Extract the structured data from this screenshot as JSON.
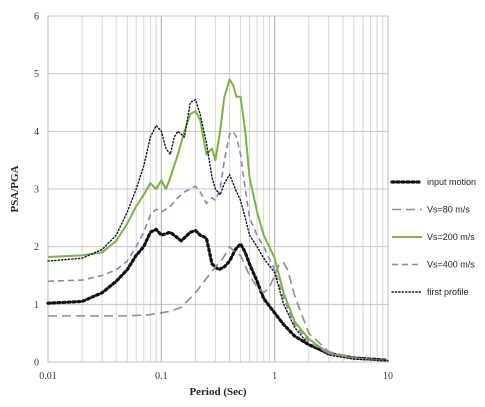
{
  "chart_data": {
    "type": "line",
    "title": "",
    "xlabel": "Period (Sec)",
    "ylabel": "PSA/PGA",
    "x_scale": "log",
    "xlim": [
      0.01,
      10
    ],
    "ylim": [
      0,
      6
    ],
    "x_ticks": [
      {
        "value": 0.01,
        "label": "0.01"
      },
      {
        "value": 0.1,
        "label": "0.1"
      },
      {
        "value": 1,
        "label": "1"
      },
      {
        "value": 10,
        "label": "10"
      }
    ],
    "y_ticks": [
      {
        "value": 0,
        "label": "0"
      },
      {
        "value": 1,
        "label": "1"
      },
      {
        "value": 2,
        "label": "2"
      },
      {
        "value": 3,
        "label": "3"
      },
      {
        "value": 4,
        "label": "4"
      },
      {
        "value": 5,
        "label": "5"
      },
      {
        "value": 6,
        "label": "6"
      }
    ],
    "grid": true,
    "legend_position": "right",
    "series": [
      {
        "name": "input motion",
        "color": "#111111",
        "style": "dotted-bold",
        "points": [
          [
            0.01,
            1.02
          ],
          [
            0.02,
            1.05
          ],
          [
            0.03,
            1.2
          ],
          [
            0.04,
            1.4
          ],
          [
            0.05,
            1.6
          ],
          [
            0.06,
            1.85
          ],
          [
            0.07,
            2.0
          ],
          [
            0.08,
            2.25
          ],
          [
            0.09,
            2.3
          ],
          [
            0.1,
            2.2
          ],
          [
            0.12,
            2.25
          ],
          [
            0.15,
            2.1
          ],
          [
            0.18,
            2.25
          ],
          [
            0.2,
            2.28
          ],
          [
            0.22,
            2.2
          ],
          [
            0.25,
            2.15
          ],
          [
            0.28,
            1.7
          ],
          [
            0.32,
            1.6
          ],
          [
            0.36,
            1.65
          ],
          [
            0.4,
            1.75
          ],
          [
            0.45,
            1.95
          ],
          [
            0.5,
            2.05
          ],
          [
            0.55,
            1.9
          ],
          [
            0.6,
            1.7
          ],
          [
            0.7,
            1.4
          ],
          [
            0.8,
            1.1
          ],
          [
            1,
            0.85
          ],
          [
            1.2,
            0.65
          ],
          [
            1.5,
            0.45
          ],
          [
            2,
            0.3
          ],
          [
            3,
            0.15
          ],
          [
            5,
            0.07
          ],
          [
            10,
            0.03
          ]
        ]
      },
      {
        "name": "Vs=80 m/s",
        "color": "#8c8c96",
        "style": "long-dash",
        "points": [
          [
            0.01,
            0.8
          ],
          [
            0.03,
            0.8
          ],
          [
            0.05,
            0.8
          ],
          [
            0.08,
            0.82
          ],
          [
            0.12,
            0.88
          ],
          [
            0.15,
            0.95
          ],
          [
            0.2,
            1.2
          ],
          [
            0.25,
            1.45
          ],
          [
            0.3,
            1.65
          ],
          [
            0.35,
            1.8
          ],
          [
            0.4,
            2.0
          ],
          [
            0.45,
            1.9
          ],
          [
            0.5,
            1.85
          ],
          [
            0.6,
            1.5
          ],
          [
            0.7,
            1.3
          ],
          [
            0.8,
            1.2
          ],
          [
            0.9,
            1.3
          ],
          [
            1,
            1.5
          ],
          [
            1.1,
            1.7
          ],
          [
            1.2,
            1.72
          ],
          [
            1.3,
            1.6
          ],
          [
            1.5,
            1.15
          ],
          [
            2,
            0.5
          ],
          [
            3,
            0.18
          ],
          [
            5,
            0.07
          ],
          [
            10,
            0.02
          ]
        ]
      },
      {
        "name": "Vs=200 m/s",
        "color": "#7db53c",
        "style": "solid",
        "points": [
          [
            0.01,
            1.82
          ],
          [
            0.02,
            1.85
          ],
          [
            0.03,
            1.9
          ],
          [
            0.04,
            2.1
          ],
          [
            0.05,
            2.4
          ],
          [
            0.06,
            2.7
          ],
          [
            0.07,
            2.9
          ],
          [
            0.08,
            3.1
          ],
          [
            0.09,
            3.0
          ],
          [
            0.1,
            3.15
          ],
          [
            0.11,
            3.0
          ],
          [
            0.12,
            3.2
          ],
          [
            0.14,
            3.6
          ],
          [
            0.16,
            4.0
          ],
          [
            0.18,
            4.3
          ],
          [
            0.2,
            4.35
          ],
          [
            0.22,
            4.2
          ],
          [
            0.25,
            3.6
          ],
          [
            0.28,
            3.7
          ],
          [
            0.3,
            3.5
          ],
          [
            0.33,
            4.0
          ],
          [
            0.36,
            4.6
          ],
          [
            0.4,
            4.9
          ],
          [
            0.43,
            4.8
          ],
          [
            0.46,
            4.6
          ],
          [
            0.5,
            4.6
          ],
          [
            0.55,
            4.0
          ],
          [
            0.6,
            3.2
          ],
          [
            0.7,
            2.6
          ],
          [
            0.8,
            2.2
          ],
          [
            1,
            1.8
          ],
          [
            1.2,
            1.2
          ],
          [
            1.5,
            0.7
          ],
          [
            2,
            0.4
          ],
          [
            3,
            0.15
          ],
          [
            5,
            0.06
          ],
          [
            10,
            0.02
          ]
        ]
      },
      {
        "name": "Vs=400 m/s",
        "color": "#8f7fc6",
        "style": "dash",
        "points": [
          [
            0.01,
            1.4
          ],
          [
            0.02,
            1.42
          ],
          [
            0.03,
            1.5
          ],
          [
            0.04,
            1.6
          ],
          [
            0.05,
            1.75
          ],
          [
            0.06,
            2.0
          ],
          [
            0.07,
            2.25
          ],
          [
            0.08,
            2.55
          ],
          [
            0.09,
            2.65
          ],
          [
            0.1,
            2.6
          ],
          [
            0.12,
            2.7
          ],
          [
            0.14,
            2.85
          ],
          [
            0.16,
            2.95
          ],
          [
            0.18,
            3.0
          ],
          [
            0.2,
            3.05
          ],
          [
            0.22,
            2.95
          ],
          [
            0.25,
            2.75
          ],
          [
            0.28,
            2.85
          ],
          [
            0.3,
            2.8
          ],
          [
            0.33,
            3.0
          ],
          [
            0.36,
            3.5
          ],
          [
            0.4,
            3.95
          ],
          [
            0.43,
            4.0
          ],
          [
            0.46,
            3.9
          ],
          [
            0.5,
            3.6
          ],
          [
            0.55,
            3.0
          ],
          [
            0.6,
            2.5
          ],
          [
            0.7,
            2.2
          ],
          [
            0.8,
            2.0
          ],
          [
            1,
            1.6
          ],
          [
            1.2,
            1.1
          ],
          [
            1.5,
            0.65
          ],
          [
            2,
            0.35
          ],
          [
            3,
            0.14
          ],
          [
            5,
            0.06
          ],
          [
            10,
            0.02
          ]
        ]
      },
      {
        "name": "first profile",
        "color": "#111111",
        "style": "dotted",
        "points": [
          [
            0.01,
            1.75
          ],
          [
            0.02,
            1.8
          ],
          [
            0.03,
            1.95
          ],
          [
            0.04,
            2.2
          ],
          [
            0.05,
            2.6
          ],
          [
            0.06,
            3.0
          ],
          [
            0.07,
            3.4
          ],
          [
            0.08,
            3.9
          ],
          [
            0.09,
            4.1
          ],
          [
            0.1,
            4.0
          ],
          [
            0.11,
            3.7
          ],
          [
            0.12,
            3.6
          ],
          [
            0.13,
            3.9
          ],
          [
            0.14,
            4.0
          ],
          [
            0.16,
            3.9
          ],
          [
            0.18,
            4.5
          ],
          [
            0.2,
            4.55
          ],
          [
            0.22,
            4.3
          ],
          [
            0.25,
            3.8
          ],
          [
            0.28,
            3.2
          ],
          [
            0.3,
            3.0
          ],
          [
            0.33,
            2.9
          ],
          [
            0.36,
            3.1
          ],
          [
            0.4,
            3.25
          ],
          [
            0.45,
            3.0
          ],
          [
            0.5,
            2.8
          ],
          [
            0.55,
            2.5
          ],
          [
            0.6,
            2.2
          ],
          [
            0.7,
            2.0
          ],
          [
            0.8,
            1.8
          ],
          [
            1,
            1.55
          ],
          [
            1.2,
            1.0
          ],
          [
            1.5,
            0.6
          ],
          [
            2,
            0.3
          ],
          [
            3,
            0.12
          ],
          [
            5,
            0.05
          ],
          [
            10,
            0.02
          ]
        ]
      }
    ]
  }
}
